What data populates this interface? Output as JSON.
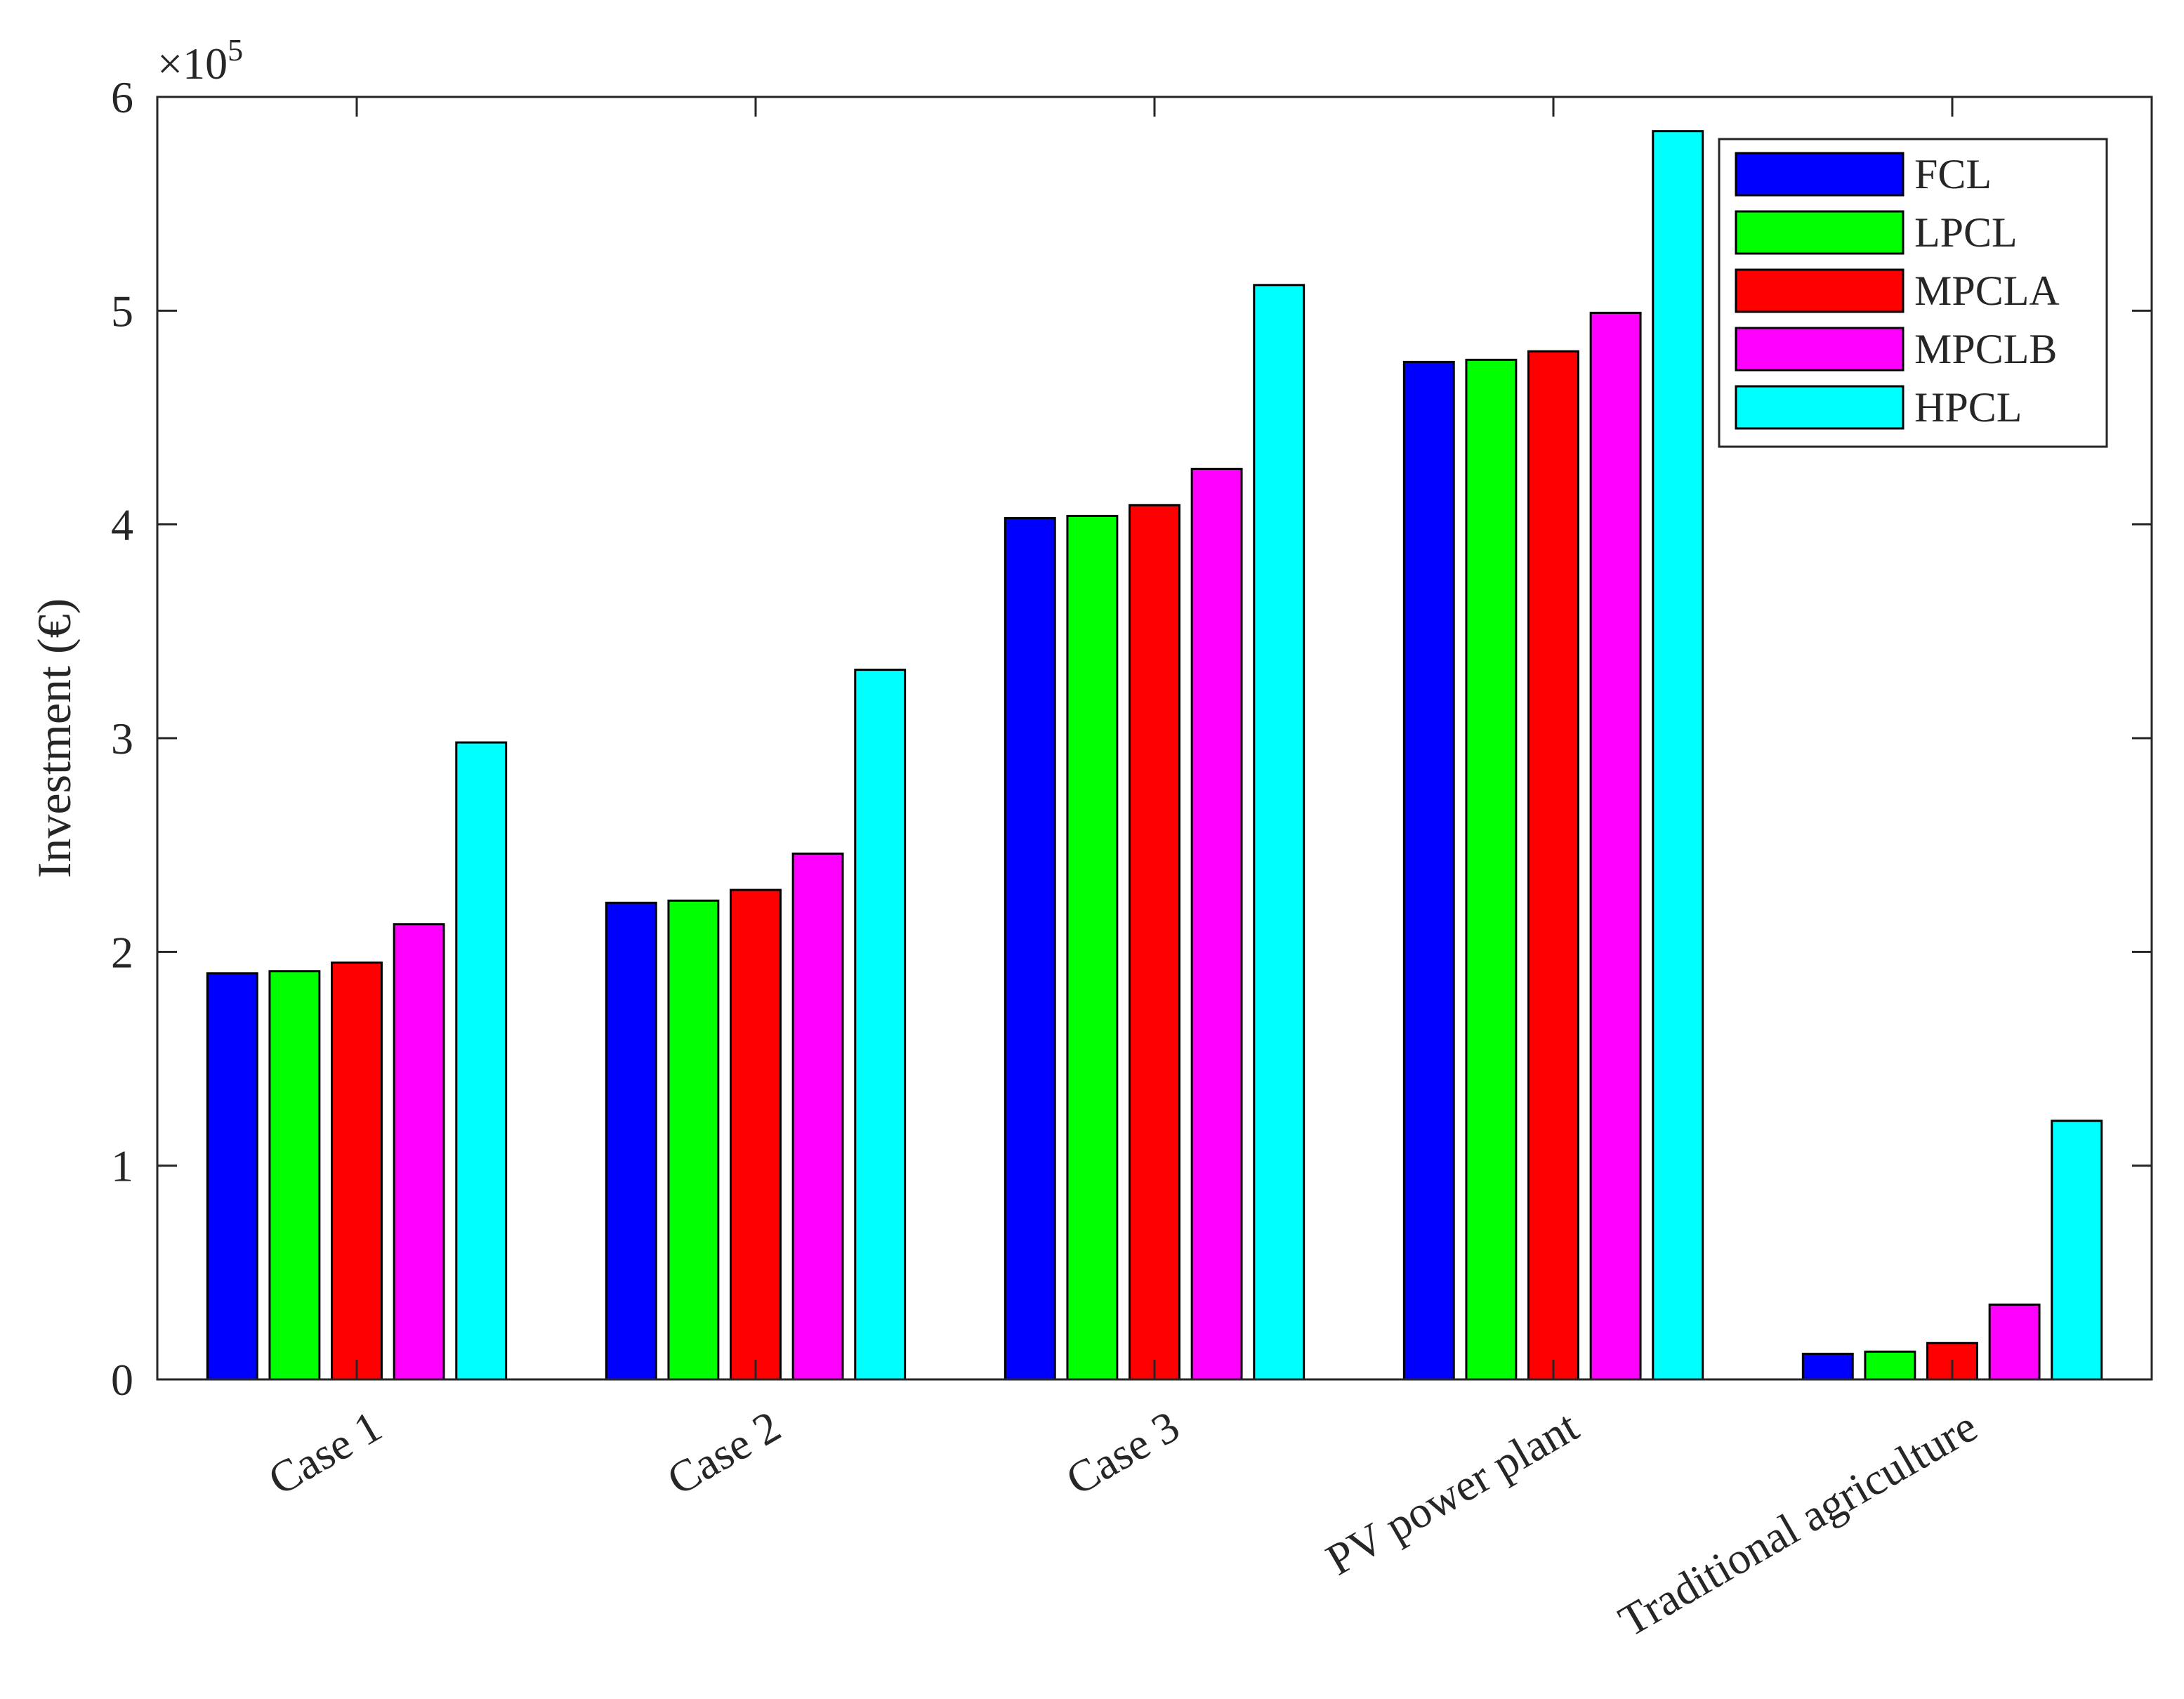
{
  "chart_data": {
    "type": "bar",
    "categories": [
      "Case 1",
      "Case 2",
      "Case 3",
      "PV power plant",
      "Traditional agriculture"
    ],
    "series": [
      {
        "name": "FCL",
        "color": "#0000ff",
        "values": [
          190000,
          223000,
          403000,
          476000,
          12000
        ]
      },
      {
        "name": "LPCL",
        "color": "#00ff00",
        "values": [
          191000,
          224000,
          404000,
          477000,
          13000
        ]
      },
      {
        "name": "MPCLA",
        "color": "#ff0000",
        "values": [
          195000,
          229000,
          409000,
          481000,
          17000
        ]
      },
      {
        "name": "MPCLB",
        "color": "#ff00ff",
        "values": [
          213000,
          246000,
          426000,
          499000,
          35000
        ]
      },
      {
        "name": "HPCL",
        "color": "#00ffff",
        "values": [
          298000,
          332000,
          512000,
          584000,
          121000
        ]
      }
    ],
    "title": "",
    "xlabel": "",
    "ylabel": "Investment (€)",
    "ylim": [
      0,
      600000
    ],
    "yticks": [
      0,
      1,
      2,
      3,
      4,
      5,
      6
    ],
    "y_exponent_label": "×10",
    "y_exponent_power": "5",
    "legend_position": "top-right",
    "grid": false,
    "x_tick_rotation": "angled"
  }
}
